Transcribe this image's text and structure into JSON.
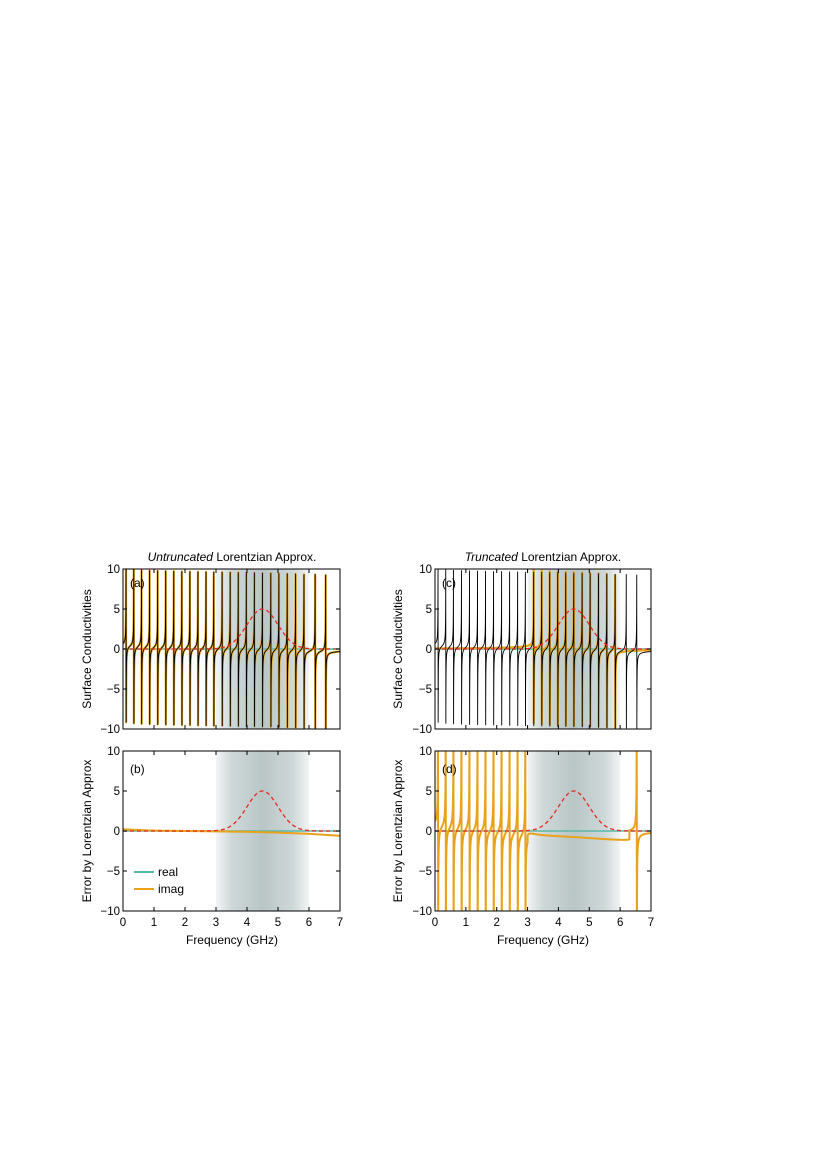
{
  "chart_data": [
    {
      "panel": "a",
      "type": "line",
      "panel_label": "(a)",
      "title_italic": "Untruncated",
      "title_rest": " Lorentzian Approx.",
      "xlabel": "",
      "ylabel": "Surface Conductivities",
      "xlim": [
        0,
        7
      ],
      "ylim": [
        -10,
        10
      ],
      "xticks": [
        0,
        1,
        2,
        3,
        4,
        5,
        6,
        7
      ],
      "yticks": [
        -10,
        -5,
        0,
        5,
        10
      ],
      "show_xtick_labels": false,
      "resonance_frequencies_ghz": [
        0.1,
        0.35,
        0.6,
        0.86,
        1.12,
        1.38,
        1.64,
        1.9,
        2.16,
        2.42,
        2.68,
        2.93,
        3.2,
        3.46,
        3.72,
        3.98,
        4.24,
        4.5,
        4.77,
        5.03,
        5.3,
        5.57,
        5.84,
        6.2,
        6.54
      ],
      "shaded_band_ghz": [
        3,
        6
      ],
      "core_band_ghz": [
        3.5,
        5.5
      ],
      "series": [
        {
          "role": "reference",
          "color": "#000000",
          "style": "solid"
        },
        {
          "role": "imag",
          "color": "#E8A21B",
          "style": "solid"
        },
        {
          "role": "real",
          "color": "#5CB8A8",
          "style": "solid"
        },
        {
          "role": "gaussian",
          "color": "#E8281E",
          "style": "dashed",
          "center_ghz": 4.5,
          "peak": 5,
          "sigma_ghz": 0.5
        }
      ]
    },
    {
      "panel": "b",
      "type": "line",
      "panel_label": "(b)",
      "xlabel": "Frequency (GHz)",
      "ylabel": "Error by Lorentzian Approx",
      "xlim": [
        0,
        7
      ],
      "ylim": [
        -10,
        10
      ],
      "xticks": [
        0,
        1,
        2,
        3,
        4,
        5,
        6,
        7
      ],
      "yticks": [
        -10,
        -5,
        0,
        5,
        10
      ],
      "shaded_band_ghz": [
        3,
        6
      ],
      "core_band_ghz": [
        3.5,
        5.5
      ],
      "legend": {
        "placement": "bottom-left",
        "entries": [
          {
            "label": "real",
            "color": "#5CB8A8"
          },
          {
            "label": "imag",
            "color": "#E8A21B"
          }
        ]
      },
      "series": [
        {
          "name": "real",
          "color": "#5CB8A8",
          "x": [
            0,
            7
          ],
          "y": [
            0,
            0
          ]
        },
        {
          "name": "imag",
          "color": "#E8A21B",
          "x": [
            0,
            0.05,
            1,
            2,
            3,
            4,
            5,
            6,
            7
          ],
          "y": [
            0.3,
            0.2,
            0.05,
            0,
            -0.05,
            -0.1,
            -0.2,
            -0.35,
            -0.6
          ]
        },
        {
          "role": "gaussian",
          "color": "#E8281E",
          "style": "dashed",
          "center_ghz": 4.5,
          "peak": 5,
          "sigma_ghz": 0.5
        }
      ]
    },
    {
      "panel": "c",
      "type": "line",
      "panel_label": "(c)",
      "title_italic": "Truncated",
      "title_rest": " Lorentzian Approx.",
      "xlabel": "",
      "ylabel": "Surface Conductivities",
      "xlim": [
        0,
        7
      ],
      "ylim": [
        -10,
        10
      ],
      "xticks": [
        0,
        1,
        2,
        3,
        4,
        5,
        6,
        7
      ],
      "yticks": [
        -10,
        -5,
        0,
        5,
        10
      ],
      "show_xtick_labels": false,
      "resonance_frequencies_ghz": [
        0.1,
        0.35,
        0.6,
        0.86,
        1.12,
        1.38,
        1.64,
        1.9,
        2.16,
        2.42,
        2.68,
        2.93,
        3.2,
        3.46,
        3.72,
        3.98,
        4.24,
        4.5,
        4.77,
        5.03,
        5.3,
        5.57,
        5.84,
        6.2,
        6.54
      ],
      "approx_band_ghz": [
        3,
        6
      ],
      "shaded_band_ghz": [
        3,
        6
      ],
      "core_band_ghz": [
        3.5,
        5.5
      ],
      "series": [
        {
          "role": "reference",
          "color": "#000000",
          "style": "solid"
        },
        {
          "role": "imag",
          "color": "#E8A21B",
          "style": "solid"
        },
        {
          "role": "real",
          "color": "#5CB8A8",
          "style": "solid"
        },
        {
          "role": "gaussian",
          "color": "#E8281E",
          "style": "dashed",
          "center_ghz": 4.5,
          "peak": 5,
          "sigma_ghz": 0.5
        }
      ]
    },
    {
      "panel": "d",
      "type": "line",
      "panel_label": "(d)",
      "xlabel": "Frequency (GHz)",
      "ylabel": "Error by Lorentzian Approx",
      "xlim": [
        0,
        7
      ],
      "ylim": [
        -10,
        10
      ],
      "xticks": [
        0,
        1,
        2,
        3,
        4,
        5,
        6,
        7
      ],
      "yticks": [
        -10,
        -5,
        0,
        5,
        10
      ],
      "resonance_frequencies_ghz": [
        0.1,
        0.35,
        0.6,
        0.86,
        1.12,
        1.38,
        1.64,
        1.9,
        2.16,
        2.42,
        2.68,
        2.93,
        6.54
      ],
      "shaded_band_ghz": [
        3,
        6
      ],
      "core_band_ghz": [
        3.5,
        5.5
      ],
      "series": [
        {
          "name": "real",
          "color": "#5CB8A8",
          "x": [
            0,
            7
          ],
          "y": [
            0,
            0
          ]
        },
        {
          "name": "imag",
          "color": "#E8A21B",
          "style": "solid"
        },
        {
          "role": "gaussian",
          "color": "#E8281E",
          "style": "dashed",
          "center_ghz": 4.5,
          "peak": 5,
          "sigma_ghz": 0.5
        }
      ]
    }
  ]
}
